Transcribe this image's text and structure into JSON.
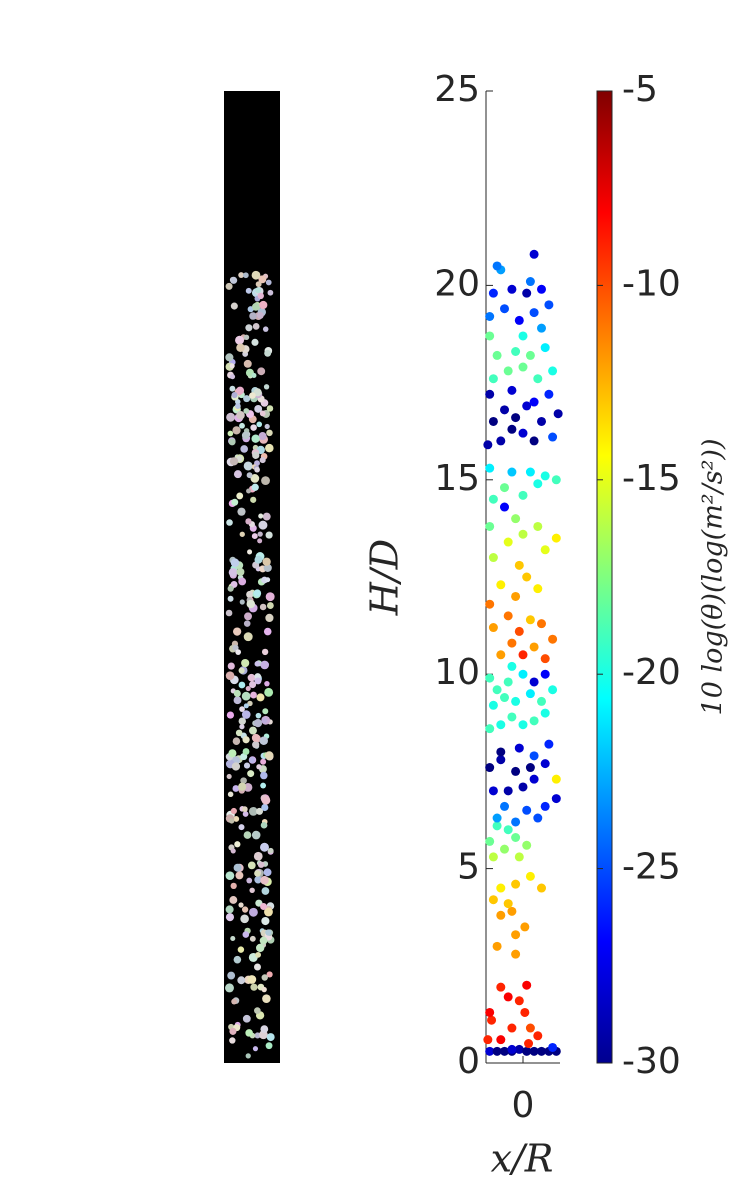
{
  "chart_data": {
    "type": "scatter",
    "xlabel": "x/R",
    "ylabel": "H/D",
    "xlim": [
      -1,
      1
    ],
    "xticks": [
      0
    ],
    "ylim": [
      0,
      25
    ],
    "yticks": [
      0,
      5,
      10,
      15,
      20,
      25
    ],
    "colorbar": {
      "label": "10 log(θ)(log(m²/s²))",
      "clim": [
        -30,
        -5
      ],
      "ticks": [
        -30,
        -25,
        -20,
        -15,
        -10,
        -5
      ],
      "colormap": "jet"
    },
    "x": [
      -0.9,
      -0.7,
      -0.5,
      -0.3,
      -0.1,
      0.1,
      0.3,
      0.5,
      0.7,
      0.9,
      0.8,
      -0.95,
      -0.3,
      -0.85,
      -0.9,
      -0.6,
      -0.4,
      -0.1,
      0.1,
      0.05,
      0.2,
      -0.3,
      -0.6,
      0.4,
      0.15,
      -0.7,
      -0.2,
      -0.2,
      0.05,
      -0.3,
      -0.6,
      -0.8,
      -0.6,
      0.2,
      0.5,
      -0.2,
      -0.4,
      -0.8,
      -0.9,
      -0.5,
      -0.2,
      -0.4,
      0.1,
      -0.1,
      -0.7,
      -0.7,
      -0.5,
      -0.2,
      0.1,
      0.4,
      0.6,
      0.9,
      -0.8,
      -0.4,
      0,
      0.3,
      -0.9,
      -0.6,
      -0.2,
      0.2,
      0.6,
      0.7,
      -0.6,
      -0.1,
      0.9,
      0.3,
      -0.9,
      -0.6,
      -0.3,
      0,
      0.3,
      0.6,
      -0.8,
      -0.5,
      -0.2,
      0.2,
      0.5,
      0.8,
      -0.9,
      -0.4,
      0,
      0.3,
      0.6,
      -0.3,
      -0.7,
      -0.6,
      -0.3,
      0,
      0.3,
      0.6,
      0.8,
      -0.8,
      -0.4,
      -0.1,
      0.2,
      0.5,
      -0.9,
      -0.2,
      -0.6,
      0.1,
      0.4,
      -0.1,
      -0.8,
      0.6,
      -0.4,
      0,
      0.9,
      -0.9,
      0.4,
      -0.2,
      -0.8,
      -0.5,
      0,
      0.4,
      0.9,
      -0.9,
      -0.3,
      0.2,
      0.6,
      -0.5,
      -0.95,
      -0.6,
      -0.3,
      0,
      0.3,
      0.8,
      -0.8,
      -0.5,
      -0.2,
      0.1,
      0.5,
      0.95,
      -0.9,
      -0.3,
      0.3,
      0.7,
      -0.8,
      -0.4,
      0,
      0.4,
      0.8,
      -0.7,
      -0.2,
      0.2,
      0.6,
      -0.9,
      0,
      0.5,
      -0.9,
      -0.5,
      -0.1,
      0.3,
      0.7,
      -0.8,
      -0.3,
      0.1,
      0.5,
      -0.6,
      0.2,
      0.3,
      -0.7
    ],
    "y": [
      0.3,
      0.3,
      0.3,
      0.3,
      0.35,
      0.3,
      0.3,
      0.3,
      0.3,
      0.3,
      0.4,
      0.6,
      0.35,
      1.1,
      1.3,
      1.95,
      1.7,
      1.6,
      2.0,
      1.3,
      0.9,
      0.9,
      0.6,
      0.7,
      0.5,
      3.0,
      2.8,
      3.3,
      3.5,
      3.9,
      3.8,
      4.2,
      4.5,
      4.8,
      4.5,
      4.6,
      4.1,
      5.3,
      5.7,
      5.5,
      5.8,
      6.0,
      5.6,
      5.3,
      6.1,
      6.3,
      6.6,
      6.2,
      6.5,
      6.3,
      6.6,
      6.8,
      7.0,
      7.0,
      7.1,
      7.3,
      7.6,
      7.8,
      7.5,
      7.6,
      7.7,
      8.2,
      8.0,
      8.1,
      7.3,
      7.9,
      8.6,
      8.7,
      8.9,
      8.7,
      8.8,
      9.0,
      9.2,
      9.4,
      9.3,
      9.5,
      9.3,
      9.6,
      9.9,
      9.8,
      10.0,
      9.8,
      10.0,
      10.2,
      9.6,
      10.5,
      10.8,
      10.5,
      10.7,
      10.4,
      10.9,
      11.2,
      11.5,
      11.1,
      11.4,
      11.3,
      11.8,
      12.0,
      12.3,
      12.5,
      12.2,
      12.8,
      13.0,
      13.2,
      13.4,
      13.6,
      13.5,
      13.8,
      13.8,
      14.0,
      14.5,
      14.8,
      14.6,
      14.9,
      15.0,
      15.3,
      15.2,
      15.2,
      15.1,
      14.3,
      15.9,
      16.0,
      16.3,
      16.2,
      16.0,
      16.1,
      16.5,
      16.8,
      16.6,
      16.9,
      16.5,
      16.7,
      17.2,
      17.3,
      17.0,
      17.2,
      17.6,
      17.8,
      17.9,
      17.6,
      17.8,
      18.2,
      18.3,
      18.2,
      18.4,
      18.7,
      18.7,
      18.9,
      19.2,
      19.4,
      19.1,
      19.3,
      19.5,
      19.8,
      19.9,
      19.8,
      19.9,
      20.4,
      20.1,
      20.8,
      20.5
    ],
    "c": [
      -28,
      -30,
      -30,
      -30,
      -29,
      -30,
      -30,
      -30,
      -30,
      -30,
      -26,
      -9,
      -28,
      -9,
      -8,
      -9,
      -8,
      -9,
      -8,
      -9,
      -10,
      -9,
      -8,
      -9,
      -9,
      -12,
      -12,
      -12,
      -12,
      -12,
      -12,
      -13,
      -14,
      -14,
      -13,
      -13,
      -13,
      -16,
      -18,
      -17,
      -18,
      -19,
      -17,
      -16,
      -19,
      -23,
      -24,
      -24,
      -25,
      -25,
      -26,
      -28,
      -28,
      -29,
      -29,
      -28,
      -30,
      -29,
      -30,
      -30,
      -28,
      -26,
      -30,
      -28,
      -14,
      -25,
      -19,
      -20,
      -19,
      -20,
      -19,
      -20,
      -20,
      -19,
      -20,
      -21,
      -19,
      -20,
      -19,
      -19,
      -21,
      -28,
      -27,
      -20,
      -19,
      -12,
      -11,
      -9,
      -12,
      -10,
      -11,
      -12,
      -11,
      -10,
      -13,
      -11,
      -11,
      -12,
      -14,
      -13,
      -14,
      -13,
      -16,
      -15,
      -15,
      -16,
      -14,
      -18,
      -16,
      -17,
      -19,
      -18,
      -19,
      -20,
      -19,
      -21,
      -22,
      -21,
      -20,
      -27,
      -29,
      -29,
      -30,
      -28,
      -30,
      -25,
      -30,
      -29,
      -30,
      -28,
      -29,
      -29,
      -29,
      -28,
      -27,
      -26,
      -19,
      -18,
      -18,
      -19,
      -20,
      -18,
      -19,
      -18,
      -21,
      -18,
      -20,
      -23,
      -24,
      -25,
      -27,
      -25,
      -25,
      -26,
      -28,
      -29,
      -27,
      -23,
      -24,
      -28,
      -24
    ]
  }
}
